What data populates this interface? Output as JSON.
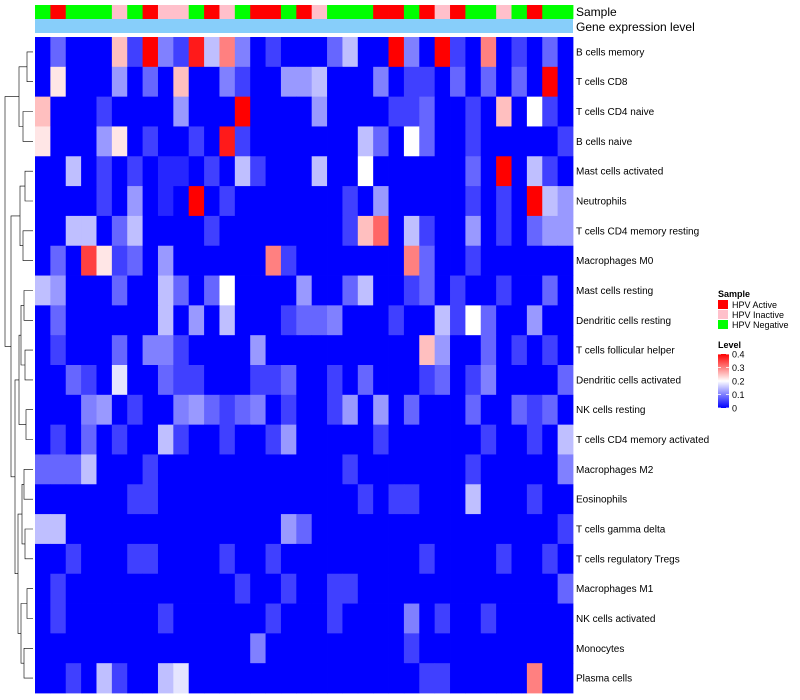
{
  "chart_data": {
    "type": "heatmap",
    "title": "",
    "annotation_labels": [
      "Sample",
      "Gene expression level"
    ],
    "row_labels": [
      "B cells memory",
      "T cells CD8",
      "T cells CD4 naive",
      "B cells naive",
      "Mast cells activated",
      "Neutrophils",
      "T cells CD4 memory resting",
      "Macrophages M0",
      "Mast cells resting",
      "Dendritic cells resting",
      "T cells follicular helper",
      "Dendritic cells activated",
      "NK cells resting",
      "T cells CD4 memory activated",
      "Macrophages M2",
      "Eosinophils",
      "T cells gamma delta",
      "T cells regulatory  Tregs",
      "Macrophages M1",
      "NK cells activated",
      "Monocytes",
      "Plasma cells"
    ],
    "sample_groups": [
      "Negative",
      "Active",
      "Negative",
      "Negative",
      "Negative",
      "Inactive",
      "Negative",
      "Active",
      "Inactive",
      "Inactive",
      "Negative",
      "Active",
      "Inactive",
      "Negative",
      "Active",
      "Active",
      "Negative",
      "Active",
      "Inactive",
      "Negative",
      "Negative",
      "Negative",
      "Active",
      "Active",
      "Negative",
      "Active",
      "Inactive",
      "Active",
      "Negative",
      "Negative",
      "Inactive",
      "Negative",
      "Active",
      "Negative",
      "Negative"
    ],
    "values": [
      [
        0.0,
        0.08,
        0.0,
        0.0,
        0.0,
        0.25,
        0.05,
        0.4,
        0.1,
        0.05,
        0.38,
        0.15,
        0.3,
        0.1,
        0.0,
        0.05,
        0.0,
        0.0,
        0.0,
        0.08,
        0.15,
        0.0,
        0.0,
        0.4,
        0.1,
        0.0,
        0.4,
        0.05,
        0.0,
        0.3,
        0.0,
        0.05,
        0.0,
        0.08,
        0.0
      ],
      [
        0.0,
        0.22,
        0.0,
        0.0,
        0.0,
        0.12,
        0.0,
        0.08,
        0.0,
        0.25,
        0.0,
        0.0,
        0.1,
        0.05,
        0.0,
        0.0,
        0.12,
        0.12,
        0.15,
        0.0,
        0.0,
        0.0,
        0.1,
        0.0,
        0.05,
        0.05,
        0.0,
        0.08,
        0.0,
        0.08,
        0.0,
        0.08,
        0.0,
        0.4,
        0.0
      ],
      [
        0.25,
        0.0,
        0.0,
        0.0,
        0.05,
        0.0,
        0.0,
        0.0,
        0.0,
        0.12,
        0.0,
        0.0,
        0.0,
        0.4,
        0.0,
        0.0,
        0.0,
        0.0,
        0.12,
        0.0,
        0.0,
        0.0,
        0.0,
        0.05,
        0.05,
        0.08,
        0.0,
        0.0,
        0.05,
        0.0,
        0.25,
        0.0,
        0.2,
        0.05,
        0.0
      ],
      [
        0.22,
        0.0,
        0.0,
        0.0,
        0.12,
        0.22,
        0.0,
        0.05,
        0.0,
        0.0,
        0.05,
        0.0,
        0.38,
        0.05,
        0.0,
        0.0,
        0.0,
        0.0,
        0.0,
        0.0,
        0.0,
        0.15,
        0.08,
        0.0,
        0.2,
        0.08,
        0.0,
        0.0,
        0.05,
        0.0,
        0.0,
        0.0,
        0.0,
        0.0,
        0.05
      ],
      [
        0.0,
        0.0,
        0.15,
        0.0,
        0.05,
        0.0,
        0.05,
        0.0,
        0.03,
        0.03,
        0.0,
        0.05,
        0.0,
        0.15,
        0.05,
        0.0,
        0.0,
        0.0,
        0.15,
        0.0,
        0.0,
        0.2,
        0.0,
        0.0,
        0.0,
        0.0,
        0.0,
        0.0,
        0.08,
        0.0,
        0.4,
        0.0,
        0.15,
        0.05,
        0.0
      ],
      [
        0.0,
        0.0,
        0.0,
        0.0,
        0.05,
        0.0,
        0.12,
        0.0,
        0.03,
        0.0,
        0.4,
        0.0,
        0.05,
        0.0,
        0.0,
        0.0,
        0.0,
        0.0,
        0.0,
        0.0,
        0.05,
        0.0,
        0.12,
        0.0,
        0.0,
        0.0,
        0.0,
        0.0,
        0.05,
        0.0,
        0.05,
        0.0,
        0.4,
        0.15,
        0.12
      ],
      [
        0.0,
        0.0,
        0.15,
        0.15,
        0.0,
        0.08,
        0.15,
        0.0,
        0.0,
        0.0,
        0.0,
        0.05,
        0.0,
        0.0,
        0.0,
        0.0,
        0.0,
        0.0,
        0.0,
        0.0,
        0.05,
        0.25,
        0.32,
        0.0,
        0.15,
        0.05,
        0.0,
        0.0,
        0.12,
        0.0,
        0.05,
        0.0,
        0.08,
        0.12,
        0.12
      ],
      [
        0.0,
        0.08,
        0.0,
        0.35,
        0.22,
        0.05,
        0.08,
        0.0,
        0.12,
        0.0,
        0.0,
        0.0,
        0.0,
        0.0,
        0.0,
        0.3,
        0.05,
        0.0,
        0.0,
        0.0,
        0.0,
        0.0,
        0.0,
        0.0,
        0.3,
        0.08,
        0.0,
        0.0,
        0.05,
        0.0,
        0.0,
        0.0,
        0.0,
        0.0,
        0.0
      ],
      [
        0.15,
        0.12,
        0.0,
        0.0,
        0.0,
        0.08,
        0.0,
        0.0,
        0.15,
        0.08,
        0.0,
        0.08,
        0.2,
        0.0,
        0.0,
        0.0,
        0.0,
        0.12,
        0.0,
        0.0,
        0.08,
        0.15,
        0.0,
        0.0,
        0.05,
        0.08,
        0.0,
        0.05,
        0.0,
        0.0,
        0.05,
        0.0,
        0.0,
        0.08,
        0.0
      ],
      [
        0.0,
        0.08,
        0.0,
        0.0,
        0.0,
        0.0,
        0.0,
        0.0,
        0.15,
        0.0,
        0.12,
        0.0,
        0.15,
        0.0,
        0.0,
        0.0,
        0.05,
        0.08,
        0.08,
        0.1,
        0.0,
        0.0,
        0.0,
        0.05,
        0.0,
        0.0,
        0.15,
        0.05,
        0.2,
        0.08,
        0.0,
        0.0,
        0.12,
        0.0,
        0.0
      ],
      [
        0.0,
        0.05,
        0.0,
        0.0,
        0.0,
        0.08,
        0.0,
        0.1,
        0.1,
        0.05,
        0.0,
        0.0,
        0.0,
        0.0,
        0.12,
        0.0,
        0.0,
        0.0,
        0.0,
        0.0,
        0.0,
        0.0,
        0.0,
        0.0,
        0.0,
        0.25,
        0.12,
        0.0,
        0.0,
        0.08,
        0.0,
        0.05,
        0.0,
        0.05,
        0.0
      ],
      [
        0.0,
        0.0,
        0.08,
        0.05,
        0.0,
        0.18,
        0.0,
        0.0,
        0.08,
        0.05,
        0.05,
        0.0,
        0.0,
        0.0,
        0.05,
        0.05,
        0.08,
        0.0,
        0.0,
        0.05,
        0.0,
        0.08,
        0.0,
        0.0,
        0.0,
        0.05,
        0.08,
        0.0,
        0.05,
        0.1,
        0.0,
        0.0,
        0.0,
        0.0,
        0.08
      ],
      [
        0.0,
        0.0,
        0.0,
        0.1,
        0.12,
        0.0,
        0.05,
        0.0,
        0.0,
        0.1,
        0.12,
        0.08,
        0.05,
        0.08,
        0.1,
        0.0,
        0.05,
        0.0,
        0.0,
        0.05,
        0.12,
        0.0,
        0.12,
        0.0,
        0.08,
        0.0,
        0.0,
        0.0,
        0.08,
        0.0,
        0.0,
        0.08,
        0.05,
        0.08,
        0.0
      ],
      [
        0.0,
        0.05,
        0.0,
        0.08,
        0.0,
        0.05,
        0.0,
        0.0,
        0.15,
        0.05,
        0.0,
        0.0,
        0.05,
        0.0,
        0.0,
        0.05,
        0.12,
        0.0,
        0.0,
        0.0,
        0.0,
        0.0,
        0.05,
        0.0,
        0.0,
        0.0,
        0.0,
        0.0,
        0.0,
        0.05,
        0.0,
        0.0,
        0.05,
        0.0,
        0.15
      ],
      [
        0.08,
        0.08,
        0.08,
        0.15,
        0.0,
        0.0,
        0.0,
        0.05,
        0.0,
        0.0,
        0.0,
        0.0,
        0.0,
        0.0,
        0.0,
        0.0,
        0.0,
        0.0,
        0.0,
        0.0,
        0.05,
        0.0,
        0.0,
        0.0,
        0.0,
        0.0,
        0.0,
        0.0,
        0.05,
        0.0,
        0.0,
        0.0,
        0.0,
        0.0,
        0.1
      ],
      [
        0.0,
        0.0,
        0.0,
        0.0,
        0.0,
        0.0,
        0.05,
        0.05,
        0.0,
        0.0,
        0.0,
        0.0,
        0.0,
        0.0,
        0.0,
        0.0,
        0.0,
        0.0,
        0.0,
        0.0,
        0.0,
        0.05,
        0.0,
        0.05,
        0.05,
        0.0,
        0.0,
        0.0,
        0.15,
        0.0,
        0.0,
        0.0,
        0.05,
        0.0,
        0.0
      ],
      [
        0.15,
        0.15,
        0.0,
        0.0,
        0.0,
        0.0,
        0.0,
        0.0,
        0.0,
        0.0,
        0.0,
        0.0,
        0.0,
        0.0,
        0.0,
        0.0,
        0.12,
        0.08,
        0.0,
        0.0,
        0.0,
        0.0,
        0.0,
        0.0,
        0.0,
        0.0,
        0.0,
        0.0,
        0.0,
        0.0,
        0.0,
        0.0,
        0.0,
        0.0,
        0.05
      ],
      [
        0.0,
        0.0,
        0.05,
        0.0,
        0.0,
        0.0,
        0.05,
        0.05,
        0.0,
        0.0,
        0.0,
        0.0,
        0.05,
        0.0,
        0.0,
        0.05,
        0.0,
        0.0,
        0.0,
        0.0,
        0.0,
        0.0,
        0.0,
        0.0,
        0.0,
        0.05,
        0.0,
        0.0,
        0.0,
        0.0,
        0.05,
        0.0,
        0.0,
        0.05,
        0.0
      ],
      [
        0.0,
        0.05,
        0.0,
        0.0,
        0.0,
        0.0,
        0.0,
        0.0,
        0.0,
        0.0,
        0.0,
        0.0,
        0.0,
        0.05,
        0.0,
        0.0,
        0.05,
        0.0,
        0.0,
        0.05,
        0.05,
        0.0,
        0.0,
        0.0,
        0.0,
        0.0,
        0.0,
        0.0,
        0.0,
        0.0,
        0.0,
        0.0,
        0.0,
        0.0,
        0.08
      ],
      [
        0.0,
        0.05,
        0.0,
        0.0,
        0.0,
        0.0,
        0.0,
        0.0,
        0.05,
        0.0,
        0.0,
        0.0,
        0.0,
        0.0,
        0.0,
        0.05,
        0.0,
        0.0,
        0.0,
        0.05,
        0.0,
        0.0,
        0.0,
        0.0,
        0.1,
        0.0,
        0.05,
        0.0,
        0.0,
        0.05,
        0.0,
        0.0,
        0.0,
        0.0,
        0.0
      ],
      [
        0.0,
        0.0,
        0.0,
        0.0,
        0.0,
        0.0,
        0.0,
        0.0,
        0.0,
        0.0,
        0.0,
        0.0,
        0.0,
        0.0,
        0.1,
        0.0,
        0.0,
        0.0,
        0.0,
        0.0,
        0.0,
        0.0,
        0.0,
        0.0,
        0.05,
        0.0,
        0.0,
        0.0,
        0.0,
        0.0,
        0.0,
        0.0,
        0.0,
        0.0,
        0.0
      ],
      [
        0.0,
        0.0,
        0.05,
        0.0,
        0.15,
        0.05,
        0.0,
        0.0,
        0.15,
        0.18,
        0.0,
        0.0,
        0.0,
        0.0,
        0.0,
        0.0,
        0.0,
        0.0,
        0.0,
        0.0,
        0.0,
        0.0,
        0.0,
        0.0,
        0.0,
        0.05,
        0.05,
        0.0,
        0.0,
        0.0,
        0.0,
        0.0,
        0.3,
        0.0,
        0.0
      ]
    ],
    "color_scale": {
      "min": 0,
      "max": 0.4,
      "low_color": "#0000ff",
      "mid_color": "#ffffff",
      "high_color": "#ff0000"
    },
    "legend_sample": {
      "title": "Sample",
      "items": [
        {
          "group": "Active",
          "label": "HPV Active",
          "color": "#ff0000"
        },
        {
          "group": "Inactive",
          "label": "HPV Inactive",
          "color": "#ffc0cb"
        },
        {
          "group": "Negative",
          "label": "HPV Negative",
          "color": "#00ff00"
        }
      ]
    },
    "legend_level": {
      "title": "Level",
      "ticks": [
        0.4,
        0.3,
        0.2,
        0.1,
        0
      ],
      "tick_labels": [
        "0.4",
        "0.3",
        "0.2",
        "0.1",
        "0"
      ]
    },
    "annotation_bar_color": "#87cefa",
    "dendrogram": "left"
  }
}
